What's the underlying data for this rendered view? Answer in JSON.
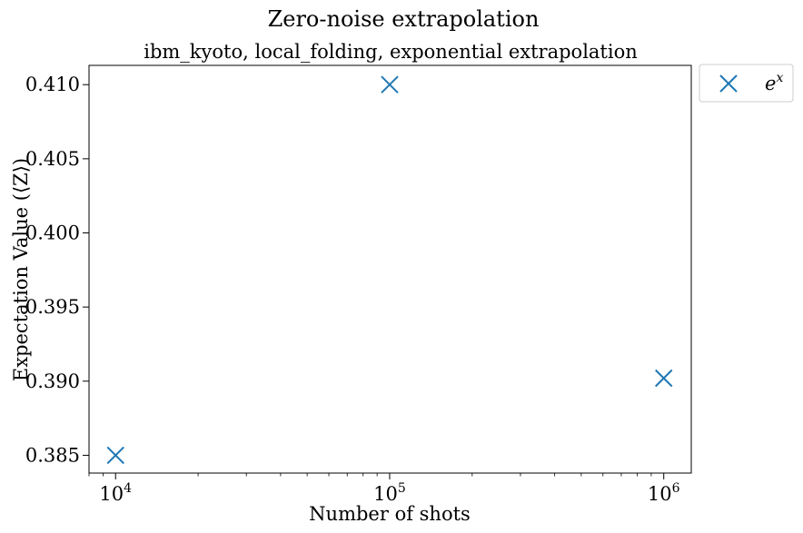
{
  "chart_data": {
    "type": "scatter",
    "title": "Zero-noise extrapolation",
    "subtitle": "ibm_kyoto, local_folding, exponential extrapolation",
    "xlabel": "Number of shots",
    "ylabel": "Expectation Value (⟨Z⟩)",
    "xscale": "log",
    "xlim": [
      8000,
      1260000
    ],
    "ylim": [
      0.3838,
      0.4113
    ],
    "x_ticks": [
      {
        "value": 10000,
        "base": "10",
        "exp": "4"
      },
      {
        "value": 100000,
        "base": "10",
        "exp": "5"
      },
      {
        "value": 1000000,
        "base": "10",
        "exp": "6"
      }
    ],
    "y_ticks": [
      {
        "value": 0.385,
        "label": "0.385"
      },
      {
        "value": 0.39,
        "label": "0.390"
      },
      {
        "value": 0.395,
        "label": "0.395"
      },
      {
        "value": 0.4,
        "label": "0.400"
      },
      {
        "value": 0.405,
        "label": "0.405"
      },
      {
        "value": 0.41,
        "label": "0.410"
      }
    ],
    "grid": false,
    "legend_position": "outside-top-right",
    "series": [
      {
        "name": "e",
        "name_sup": "x",
        "marker": "x",
        "color": "#1f77b4",
        "x": [
          10000,
          100000,
          1000000
        ],
        "y": [
          0.385,
          0.41,
          0.3902
        ]
      }
    ]
  }
}
